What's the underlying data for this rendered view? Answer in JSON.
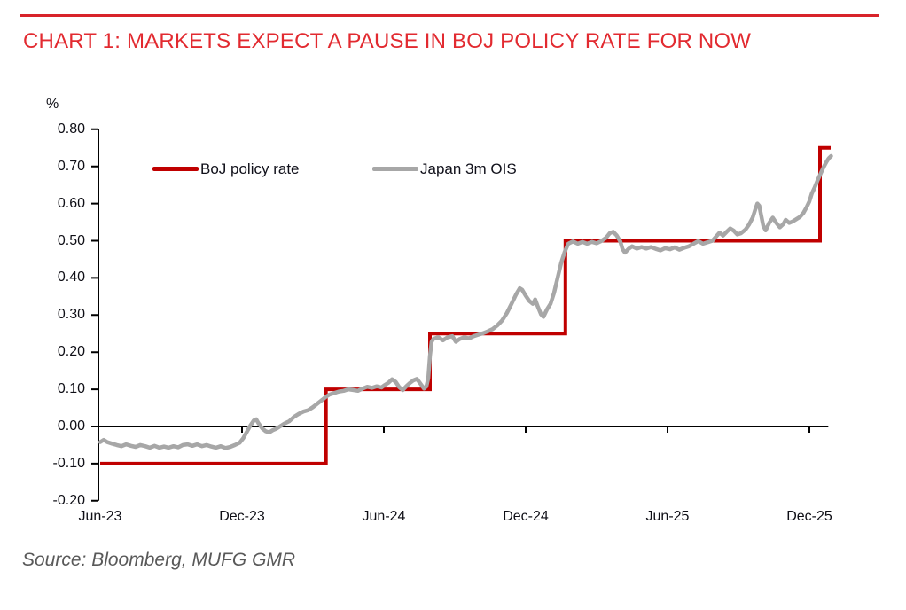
{
  "title": "CHART 1: MARKETS EXPECT A PAUSE IN BOJ POLICY RATE FOR NOW",
  "source": "Source: Bloomberg, MUFG GMR",
  "colors": {
    "title_red": "#e22a30",
    "rule_red": "#d8232a",
    "policy_line_red": "#c00000",
    "ois_line_gray": "#a7a7a7",
    "axis_black": "#000000",
    "source_gray": "#595959"
  },
  "chart_data": {
    "type": "line",
    "title": "CHART 1: MARKETS EXPECT A PAUSE IN BOJ POLICY RATE FOR NOW",
    "ylabel": "%",
    "x_unit": "months since Jun-2023",
    "xlim": [
      0,
      31
    ],
    "ylim": [
      -0.2,
      0.8
    ],
    "grid": false,
    "legend_position": "top-inside",
    "x_axis": {
      "tick_labels": [
        "Jun-23",
        "Dec-23",
        "Jun-24",
        "Dec-24",
        "Jun-25",
        "Dec-25"
      ],
      "tick_months": [
        0,
        6,
        12,
        18,
        24,
        30
      ],
      "axis_tick_months": [
        6,
        12,
        18,
        24,
        30
      ]
    },
    "y_axis": {
      "tick_values": [
        0.8,
        0.7,
        0.6,
        0.5,
        0.4,
        0.3,
        0.2,
        0.1,
        0.0,
        -0.1,
        -0.2
      ],
      "tick_labels": [
        "0.80",
        "0.70",
        "0.60",
        "0.50",
        "0.40",
        "0.30",
        "0.20",
        "0.10",
        "0.00",
        "-0.10",
        "-0.20"
      ]
    },
    "series": [
      {
        "name": "BoJ policy rate",
        "color": "#c00000",
        "style": "step",
        "points": [
          [
            0,
            -0.1
          ],
          [
            9.55,
            -0.1
          ],
          [
            9.55,
            0.1
          ],
          [
            13.95,
            0.1
          ],
          [
            13.95,
            0.25
          ],
          [
            19.68,
            0.25
          ],
          [
            19.68,
            0.5
          ],
          [
            30.45,
            0.5
          ],
          [
            30.45,
            0.75
          ],
          [
            30.9,
            0.75
          ]
        ]
      },
      {
        "name": "Japan 3m OIS",
        "color": "#a7a7a7",
        "style": "line",
        "points": [
          [
            0,
            -0.042
          ],
          [
            0.15,
            -0.036
          ],
          [
            0.3,
            -0.042
          ],
          [
            0.5,
            -0.046
          ],
          [
            0.7,
            -0.05
          ],
          [
            0.9,
            -0.053
          ],
          [
            1.1,
            -0.048
          ],
          [
            1.3,
            -0.052
          ],
          [
            1.5,
            -0.055
          ],
          [
            1.7,
            -0.05
          ],
          [
            1.9,
            -0.053
          ],
          [
            2.1,
            -0.057
          ],
          [
            2.3,
            -0.052
          ],
          [
            2.5,
            -0.057
          ],
          [
            2.7,
            -0.054
          ],
          [
            2.9,
            -0.057
          ],
          [
            3.1,
            -0.053
          ],
          [
            3.3,
            -0.056
          ],
          [
            3.5,
            -0.05
          ],
          [
            3.7,
            -0.048
          ],
          [
            3.9,
            -0.052
          ],
          [
            4.1,
            -0.048
          ],
          [
            4.3,
            -0.053
          ],
          [
            4.5,
            -0.05
          ],
          [
            4.7,
            -0.054
          ],
          [
            4.9,
            -0.057
          ],
          [
            5.1,
            -0.053
          ],
          [
            5.3,
            -0.058
          ],
          [
            5.5,
            -0.055
          ],
          [
            5.7,
            -0.05
          ],
          [
            5.9,
            -0.044
          ],
          [
            6.05,
            -0.032
          ],
          [
            6.2,
            -0.015
          ],
          [
            6.35,
            0.002
          ],
          [
            6.5,
            0.016
          ],
          [
            6.6,
            0.019
          ],
          [
            6.7,
            0.008
          ],
          [
            6.85,
            -0.005
          ],
          [
            7,
            -0.013
          ],
          [
            7.15,
            -0.016
          ],
          [
            7.3,
            -0.01
          ],
          [
            7.45,
            -0.006
          ],
          [
            7.6,
            0
          ],
          [
            7.8,
            0.008
          ],
          [
            8,
            0.014
          ],
          [
            8.2,
            0.026
          ],
          [
            8.4,
            0.034
          ],
          [
            8.6,
            0.04
          ],
          [
            8.8,
            0.044
          ],
          [
            9,
            0.052
          ],
          [
            9.2,
            0.062
          ],
          [
            9.4,
            0.072
          ],
          [
            9.55,
            0.08
          ],
          [
            9.7,
            0.086
          ],
          [
            9.9,
            0.09
          ],
          [
            10.1,
            0.094
          ],
          [
            10.3,
            0.096
          ],
          [
            10.5,
            0.1
          ],
          [
            10.7,
            0.098
          ],
          [
            10.9,
            0.096
          ],
          [
            11.1,
            0.102
          ],
          [
            11.3,
            0.107
          ],
          [
            11.5,
            0.104
          ],
          [
            11.7,
            0.108
          ],
          [
            11.9,
            0.105
          ],
          [
            12.05,
            0.112
          ],
          [
            12.2,
            0.118
          ],
          [
            12.35,
            0.127
          ],
          [
            12.5,
            0.12
          ],
          [
            12.65,
            0.106
          ],
          [
            12.8,
            0.098
          ],
          [
            12.95,
            0.108
          ],
          [
            13.1,
            0.117
          ],
          [
            13.25,
            0.124
          ],
          [
            13.4,
            0.128
          ],
          [
            13.55,
            0.115
          ],
          [
            13.7,
            0.102
          ],
          [
            13.8,
            0.108
          ],
          [
            13.88,
            0.13
          ],
          [
            13.95,
            0.19
          ],
          [
            14.02,
            0.228
          ],
          [
            14.1,
            0.236
          ],
          [
            14.3,
            0.24
          ],
          [
            14.5,
            0.232
          ],
          [
            14.7,
            0.24
          ],
          [
            14.9,
            0.243
          ],
          [
            15.05,
            0.228
          ],
          [
            15.2,
            0.235
          ],
          [
            15.4,
            0.24
          ],
          [
            15.6,
            0.237
          ],
          [
            15.8,
            0.243
          ],
          [
            16,
            0.247
          ],
          [
            16.2,
            0.251
          ],
          [
            16.4,
            0.256
          ],
          [
            16.6,
            0.262
          ],
          [
            16.8,
            0.272
          ],
          [
            17,
            0.285
          ],
          [
            17.2,
            0.305
          ],
          [
            17.4,
            0.33
          ],
          [
            17.6,
            0.356
          ],
          [
            17.75,
            0.372
          ],
          [
            17.85,
            0.368
          ],
          [
            18,
            0.352
          ],
          [
            18.15,
            0.338
          ],
          [
            18.3,
            0.33
          ],
          [
            18.4,
            0.342
          ],
          [
            18.5,
            0.325
          ],
          [
            18.65,
            0.302
          ],
          [
            18.75,
            0.295
          ],
          [
            18.9,
            0.315
          ],
          [
            19.05,
            0.33
          ],
          [
            19.2,
            0.36
          ],
          [
            19.35,
            0.4
          ],
          [
            19.5,
            0.44
          ],
          [
            19.65,
            0.47
          ],
          [
            19.8,
            0.492
          ],
          [
            20,
            0.498
          ],
          [
            20.2,
            0.492
          ],
          [
            20.4,
            0.497
          ],
          [
            20.6,
            0.492
          ],
          [
            20.8,
            0.497
          ],
          [
            21,
            0.493
          ],
          [
            21.2,
            0.499
          ],
          [
            21.4,
            0.508
          ],
          [
            21.55,
            0.52
          ],
          [
            21.7,
            0.524
          ],
          [
            21.85,
            0.514
          ],
          [
            22,
            0.498
          ],
          [
            22.1,
            0.477
          ],
          [
            22.2,
            0.468
          ],
          [
            22.35,
            0.478
          ],
          [
            22.5,
            0.485
          ],
          [
            22.7,
            0.479
          ],
          [
            22.9,
            0.483
          ],
          [
            23.1,
            0.479
          ],
          [
            23.3,
            0.483
          ],
          [
            23.5,
            0.478
          ],
          [
            23.7,
            0.474
          ],
          [
            23.9,
            0.48
          ],
          [
            24.1,
            0.477
          ],
          [
            24.3,
            0.482
          ],
          [
            24.5,
            0.476
          ],
          [
            24.7,
            0.481
          ],
          [
            24.9,
            0.485
          ],
          [
            25.1,
            0.492
          ],
          [
            25.3,
            0.499
          ],
          [
            25.5,
            0.492
          ],
          [
            25.7,
            0.496
          ],
          [
            25.9,
            0.5
          ],
          [
            26.05,
            0.511
          ],
          [
            26.2,
            0.522
          ],
          [
            26.35,
            0.514
          ],
          [
            26.5,
            0.524
          ],
          [
            26.65,
            0.533
          ],
          [
            26.8,
            0.527
          ],
          [
            26.95,
            0.517
          ],
          [
            27.1,
            0.52
          ],
          [
            27.3,
            0.53
          ],
          [
            27.45,
            0.544
          ],
          [
            27.6,
            0.562
          ],
          [
            27.72,
            0.586
          ],
          [
            27.8,
            0.6
          ],
          [
            27.88,
            0.594
          ],
          [
            27.95,
            0.572
          ],
          [
            28.05,
            0.54
          ],
          [
            28.15,
            0.528
          ],
          [
            28.3,
            0.548
          ],
          [
            28.45,
            0.562
          ],
          [
            28.6,
            0.548
          ],
          [
            28.75,
            0.536
          ],
          [
            28.9,
            0.545
          ],
          [
            29,
            0.556
          ],
          [
            29.15,
            0.548
          ],
          [
            29.3,
            0.552
          ],
          [
            29.45,
            0.558
          ],
          [
            29.6,
            0.564
          ],
          [
            29.75,
            0.575
          ],
          [
            29.88,
            0.59
          ],
          [
            30,
            0.606
          ],
          [
            30.1,
            0.627
          ],
          [
            30.22,
            0.643
          ],
          [
            30.35,
            0.663
          ],
          [
            30.5,
            0.684
          ],
          [
            30.62,
            0.7
          ],
          [
            30.72,
            0.712
          ],
          [
            30.82,
            0.722
          ],
          [
            30.92,
            0.728
          ]
        ]
      }
    ]
  }
}
